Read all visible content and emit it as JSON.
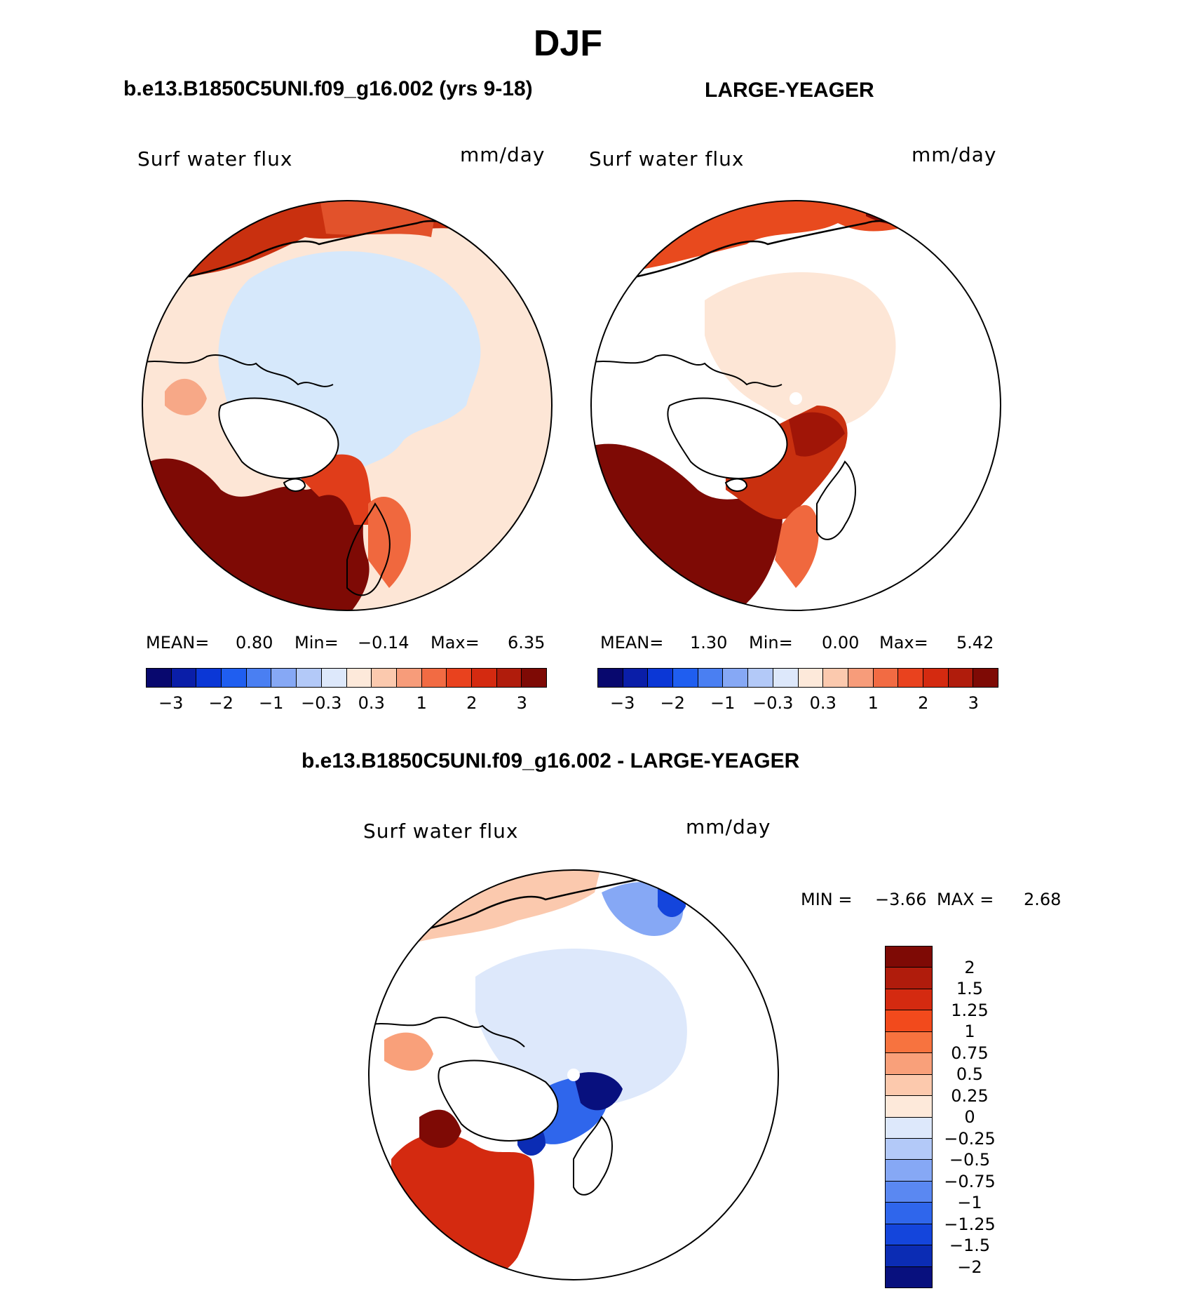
{
  "figure_title": "DJF",
  "panels": [
    {
      "title": "b.e13.B1850C5UNI.f09_g16.002 (yrs 9-18)",
      "variable": "Surf water flux",
      "units": "mm/day",
      "stats": {
        "mean_label": "MEAN=",
        "mean": "0.80",
        "min_label": "Min=",
        "min": "−0.14",
        "max_label": "Max=",
        "max": "6.35"
      }
    },
    {
      "title": "LARGE-YEAGER",
      "variable": "Surf water flux",
      "units": "mm/day",
      "stats": {
        "mean_label": "MEAN=",
        "mean": "1.30",
        "min_label": "Min=",
        "min": "0.00",
        "max_label": "Max=",
        "max": "5.42"
      }
    },
    {
      "title": "b.e13.B1850C5UNI.f09_g16.002 - LARGE-YEAGER",
      "variable": "Surf water flux",
      "units": "mm/day",
      "stats": {
        "min_label": "MIN =",
        "min": "−3.66",
        "max_label": "MAX =",
        "max": "2.68"
      }
    }
  ],
  "colorbar_abs": {
    "colors": [
      "#08086e",
      "#0a1ea8",
      "#0b37d6",
      "#1f5ef0",
      "#4a7ff2",
      "#86a8f5",
      "#b3c9f8",
      "#dde8fb",
      "#fde9da",
      "#fbc9ae",
      "#f79c7a",
      "#f26b43",
      "#e9421e",
      "#d42a10",
      "#b01c0c",
      "#7e0a05"
    ],
    "ticks": [
      "−3",
      "−2",
      "−1",
      "−0.3",
      "0.3",
      "1",
      "2",
      "3"
    ]
  },
  "colorbar_diff": {
    "colors": [
      "#7e0a05",
      "#b01c0c",
      "#d42a10",
      "#f24a1c",
      "#f7733f",
      "#f9a07a",
      "#fcc9ad",
      "#fde9da",
      "#dde8fb",
      "#b3c9f8",
      "#86a8f5",
      "#5a88f2",
      "#2f66ec",
      "#1445dc",
      "#0b2cb4",
      "#08107e"
    ],
    "ticks": [
      "2",
      "1.5",
      "1.25",
      "1",
      "0.75",
      "0.5",
      "0.25",
      "0",
      "−0.25",
      "−0.5",
      "−0.75",
      "−1",
      "−1.25",
      "−1.5",
      "−2"
    ]
  }
}
